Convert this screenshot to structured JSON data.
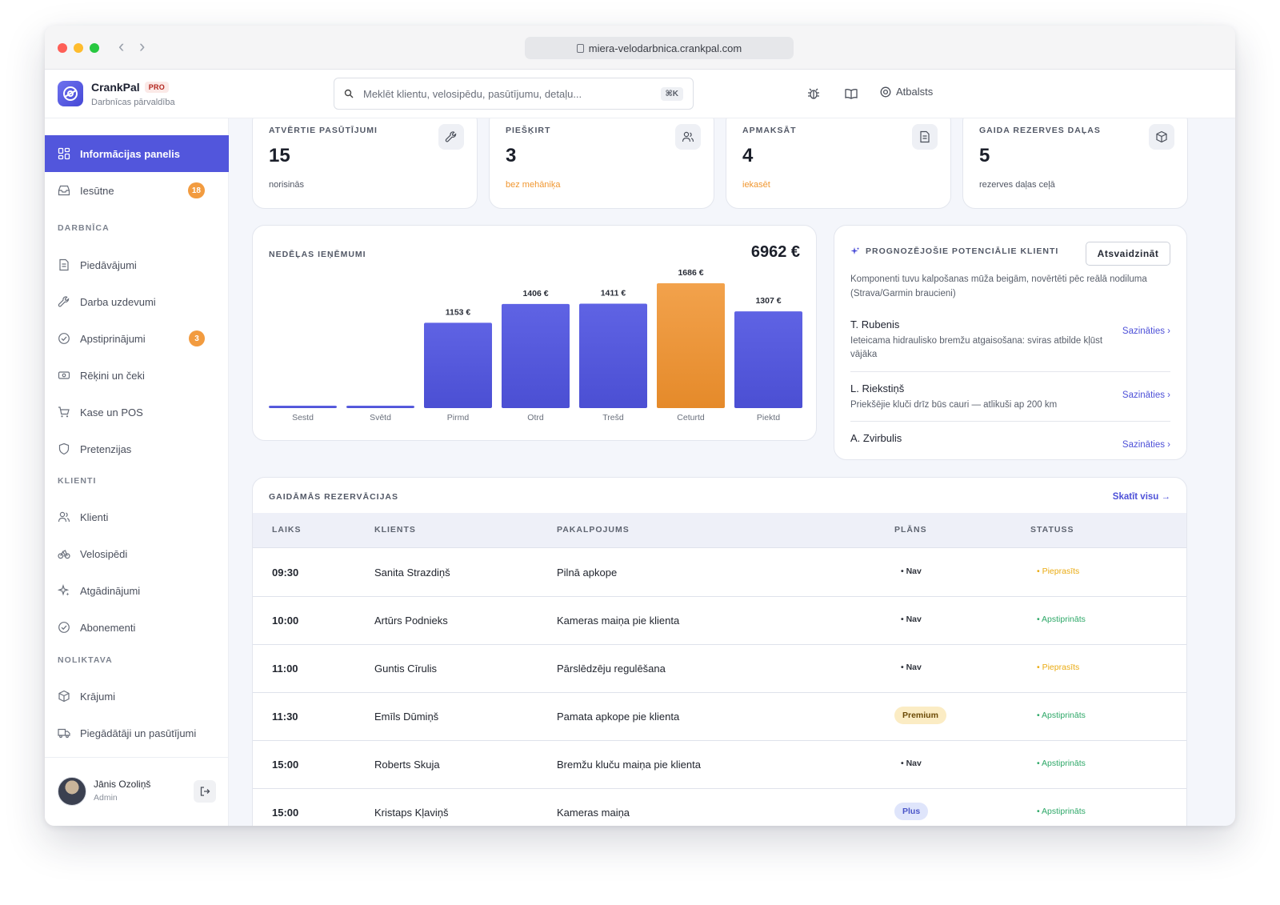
{
  "browser": {
    "url": "miera-velodarbnica.crankpal.com"
  },
  "app": {
    "name": "CrankPal",
    "badge": "PRO",
    "subtitle": "Darbnīcas pārvaldība"
  },
  "search": {
    "placeholder": "Meklēt klientu, velosipēdu, pasūtījumu, detaļu...",
    "shortcut": "⌘K"
  },
  "header": {
    "support_label": "Atbalsts"
  },
  "sidebar": {
    "items": [
      {
        "label": "Informācijas panelis",
        "icon": "dashboard-icon",
        "active": true
      },
      {
        "label": "Iesūtne",
        "icon": "inbox-icon",
        "badge": "18"
      }
    ],
    "sections": [
      {
        "title": "DARBNĪCA",
        "items": [
          {
            "label": "Piedāvājumi",
            "icon": "document-icon"
          },
          {
            "label": "Darba uzdevumi",
            "icon": "wrench-icon"
          },
          {
            "label": "Apstiprinājumi",
            "icon": "check-circle-icon",
            "badge": "3"
          },
          {
            "label": "Rēķini un čeki",
            "icon": "receipt-icon"
          },
          {
            "label": "Kase un POS",
            "icon": "cart-icon"
          },
          {
            "label": "Pretenzijas",
            "icon": "shield-icon"
          }
        ]
      },
      {
        "title": "KLIENTI",
        "items": [
          {
            "label": "Klienti",
            "icon": "users-icon"
          },
          {
            "label": "Velosipēdi",
            "icon": "bike-icon"
          },
          {
            "label": "Atgādinājumi",
            "icon": "sparkle-icon"
          },
          {
            "label": "Abonementi",
            "icon": "badge-check-icon"
          }
        ]
      },
      {
        "title": "NOLIKTAVA",
        "items": [
          {
            "label": "Krājumi",
            "icon": "box-icon"
          },
          {
            "label": "Piegādātāji un pasūtījumi",
            "icon": "truck-icon"
          }
        ]
      }
    ],
    "user": {
      "name": "Jānis Ozoliņš",
      "role": "Admin"
    }
  },
  "stats": [
    {
      "title": "ATVĒRTIE PASŪTĪJUMI",
      "value": "15",
      "sub": "norisinās",
      "sub_color": "normal",
      "icon": "wrench-icon"
    },
    {
      "title": "PIEŠĶIRT",
      "value": "3",
      "sub": "bez mehāniķa",
      "sub_color": "warn",
      "icon": "users-icon"
    },
    {
      "title": "APMAKSĀT",
      "value": "4",
      "sub": "iekasēt",
      "sub_color": "warn",
      "icon": "document-icon"
    },
    {
      "title": "GAIDA REZERVES DAĻAS",
      "value": "5",
      "sub": "rezerves daļas ceļā",
      "sub_color": "normal",
      "icon": "box-icon"
    }
  ],
  "revenue": {
    "title": "NEDĒĻAS IEŅĒMUMI",
    "total": "6962 €",
    "colors": {
      "bar": "#5559dd",
      "highlight": "#f0962f"
    }
  },
  "chart_data": {
    "type": "bar",
    "categories": [
      "Sestd",
      "Svētd",
      "Pirmd",
      "Otrd",
      "Trešd",
      "Ceturtd",
      "Piektd"
    ],
    "values": [
      0,
      0,
      1153,
      1406,
      1411,
      1686,
      1307
    ],
    "value_labels": [
      "",
      "",
      "1153 €",
      "1406 €",
      "1411 €",
      "1686 €",
      "1307 €"
    ],
    "highlight_index": 5,
    "title": "NEDĒĻAS IEŅĒMUMI",
    "ylim": [
      0,
      1686
    ],
    "grid": false
  },
  "leads": {
    "title": "PROGNOZĒJOŠIE POTENCIĀLIE KLIENTI",
    "refresh_label": "Atsvaidzināt",
    "description": "Komponenti tuvu kalpošanas mūža beigām, novērtēti pēc reālā nodiluma (Strava/Garmin braucieni)",
    "items": [
      {
        "name": "T. Rubenis",
        "desc": "Ieteicama hidraulisko bremžu atgaisošana: sviras atbilde kļūst vājāka",
        "link": "Sazināties ›"
      },
      {
        "name": "L. Riekstiņš",
        "desc": "Priekšējie kluči drīz būs cauri — atlikuši ap 200 km",
        "link": "Sazināties ›"
      },
      {
        "name": "A. Zvirbulis",
        "desc": "",
        "link": "Sazināties ›"
      }
    ]
  },
  "bookings": {
    "title": "GAIDĀMĀS REZERVĀCIJAS",
    "view_all": "Skatīt visu →",
    "columns": [
      "LAIKS",
      "KLIENTS",
      "PAKALPOJUMS",
      "PLĀNS",
      "STATUSS"
    ],
    "rows": [
      {
        "time": "09:30",
        "client": "Sanita Strazdiņš",
        "service": "Pilnā apkope",
        "plan": "• Nav",
        "plan_style": "plain",
        "status": "• Pieprasīts",
        "status_style": "req"
      },
      {
        "time": "10:00",
        "client": "Artūrs Podnieks",
        "service": "Kameras maiņa pie klienta",
        "plan": "• Nav",
        "plan_style": "plain",
        "status": "• Apstiprināts",
        "status_style": "ok"
      },
      {
        "time": "11:00",
        "client": "Guntis Cīrulis",
        "service": "Pārslēdzēju regulēšana",
        "plan": "• Nav",
        "plan_style": "plain",
        "status": "• Pieprasīts",
        "status_style": "req"
      },
      {
        "time": "11:30",
        "client": "Emīls Dūmiņš",
        "service": "Pamata apkope pie klienta",
        "plan": "Premium",
        "plan_style": "pill",
        "status": "• Apstiprināts",
        "status_style": "ok"
      },
      {
        "time": "15:00",
        "client": "Roberts Skuja",
        "service": "Bremžu kluču maiņa pie klienta",
        "plan": "• Nav",
        "plan_style": "plain",
        "status": "• Apstiprināts",
        "status_style": "ok"
      },
      {
        "time": "15:00",
        "client": "Kristaps Kļaviņš",
        "service": "Kameras maiņa",
        "plan": "Plus",
        "plan_style": "pill-blue",
        "status": "• Apstiprināts",
        "status_style": "ok"
      }
    ]
  }
}
